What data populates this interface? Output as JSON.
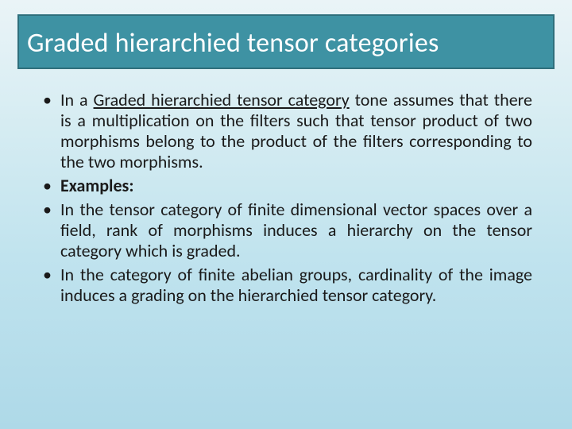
{
  "slide": {
    "title": "Graded hierarchied tensor categories",
    "title_style": {
      "background_color": "#3e92a3",
      "border_color": "#2f6f7c",
      "text_color": "#ffffff",
      "font_size_pt": 26,
      "font_weight": 400
    },
    "background_gradient": {
      "stops": [
        "#eaf4f7",
        "#d5ecf2",
        "#c0e3ee",
        "#aed9e8"
      ]
    },
    "body_text_style": {
      "font_family": "Calibri",
      "font_size_pt": 17,
      "color": "#1a1a1a",
      "align": "justify",
      "bullet_glyph": "•"
    },
    "bullets": [
      {
        "prefix": "In a ",
        "underlined": "Graded hierarchied tensor category",
        "suffix": " tone assumes that there is a multiplication on the filters such that tensor product of two morphisms belong to the product of the filters corresponding to the two morphisms."
      },
      {
        "bold": "Examples:"
      },
      {
        "plain": "In the tensor category of finite dimensional vector spaces over a field, rank of morphisms induces a hierarchy on the tensor category which is graded."
      },
      {
        "plain": "In the category of finite abelian groups, cardinality of the image induces a grading on the hierarchied tensor category."
      }
    ]
  }
}
